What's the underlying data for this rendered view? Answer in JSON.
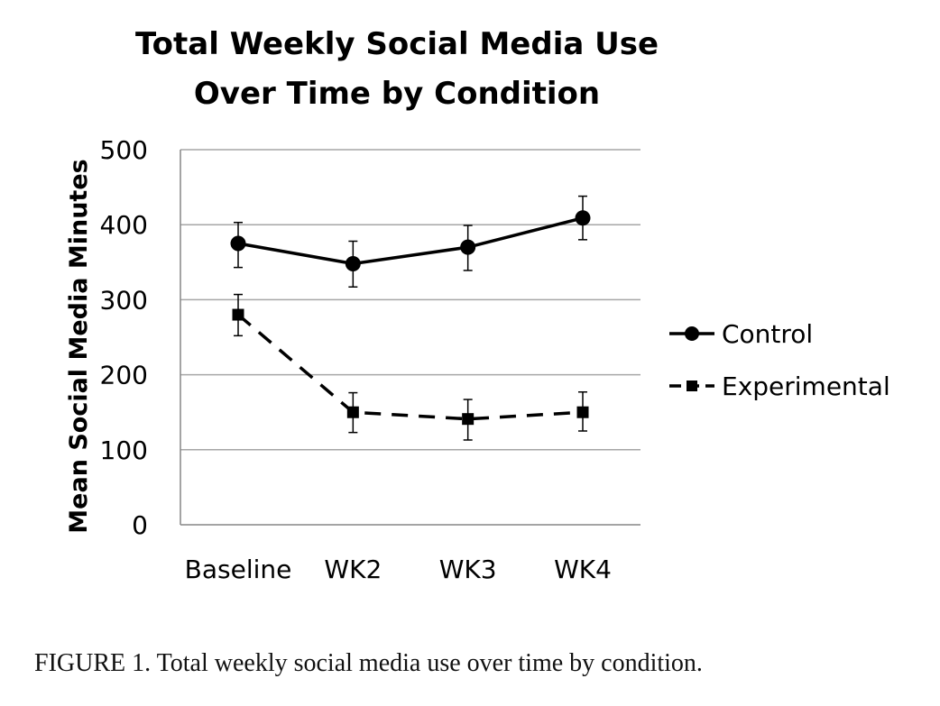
{
  "chart_data": {
    "type": "line",
    "title_lines": [
      "Total Weekly Social Media Use",
      "Over Time by Condition"
    ],
    "ylabel": "Mean Social Media Minutes",
    "xlabel": "",
    "categories": [
      "Baseline",
      "WK2",
      "WK3",
      "WK4"
    ],
    "ylim": [
      0,
      500
    ],
    "yticks": [
      0,
      100,
      200,
      300,
      400,
      500
    ],
    "ytick_labels": [
      "0",
      "100",
      "200",
      "300",
      "400",
      "500"
    ],
    "grid": true,
    "legend_position": "right",
    "series": [
      {
        "name": "Control",
        "values": [
          375,
          348,
          370,
          409
        ],
        "error_upper": [
          403,
          378,
          399,
          438
        ],
        "error_lower": [
          343,
          317,
          339,
          380
        ],
        "marker": "circle",
        "line_style": "solid",
        "color": "#000000"
      },
      {
        "name": "Experimental",
        "values": [
          280,
          150,
          141,
          150
        ],
        "error_upper": [
          307,
          176,
          167,
          177
        ],
        "error_lower": [
          252,
          123,
          113,
          125
        ],
        "marker": "square",
        "line_style": "dashed",
        "color": "#000000"
      }
    ]
  },
  "caption": "FIGURE 1. Total weekly social media use over time by condition."
}
